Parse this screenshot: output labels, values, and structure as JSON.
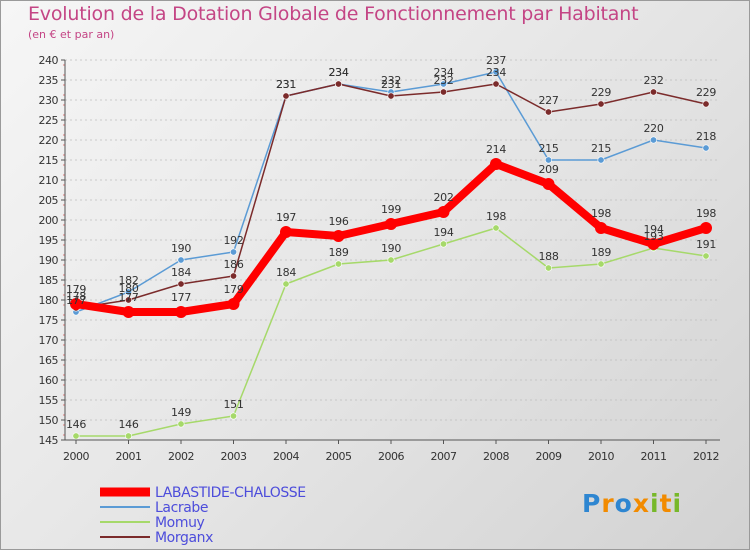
{
  "title": "Evolution de la Dotation Globale de Fonctionnement par Habitant",
  "subtitle": "(en € et par an)",
  "logo": "Proxiti",
  "chart_data": {
    "type": "line",
    "title": "Evolution de la Dotation Globale de Fonctionnement par Habitant",
    "ylabel": "(en € et par an)",
    "xlabel": "",
    "ylim": [
      145,
      240
    ],
    "ytick_step": 5,
    "grid": "horizontal dashed",
    "legend_position": "bottom-left",
    "categories": [
      "2000",
      "2001",
      "2002",
      "2003",
      "2004",
      "2005",
      "2006",
      "2007",
      "2008",
      "2009",
      "2010",
      "2011",
      "2012"
    ],
    "series": [
      {
        "name": "Lacrabe",
        "color": "#5b9bd5",
        "values": [
          177,
          182,
          190,
          192,
          231,
          234,
          232,
          234,
          237,
          215,
          215,
          220,
          218
        ]
      },
      {
        "name": "Momuy",
        "color": "#a6d96a",
        "values": [
          146,
          146,
          149,
          151,
          184,
          189,
          190,
          194,
          198,
          188,
          189,
          193,
          191
        ]
      },
      {
        "name": "Morganx",
        "color": "#7b2b2b",
        "values": [
          178,
          180,
          184,
          186,
          231,
          234,
          231,
          232,
          234,
          227,
          229,
          232,
          229
        ]
      },
      {
        "name": "LABASTIDE-CHALOSSE",
        "color": "#ff0000",
        "values": [
          179,
          177,
          177,
          179,
          197,
          196,
          199,
          202,
          214,
          209,
          198,
          194,
          198
        ]
      }
    ],
    "legend": [
      "LABASTIDE-CHALOSSE",
      "Lacrabe",
      "Momuy",
      "Morganx"
    ]
  }
}
